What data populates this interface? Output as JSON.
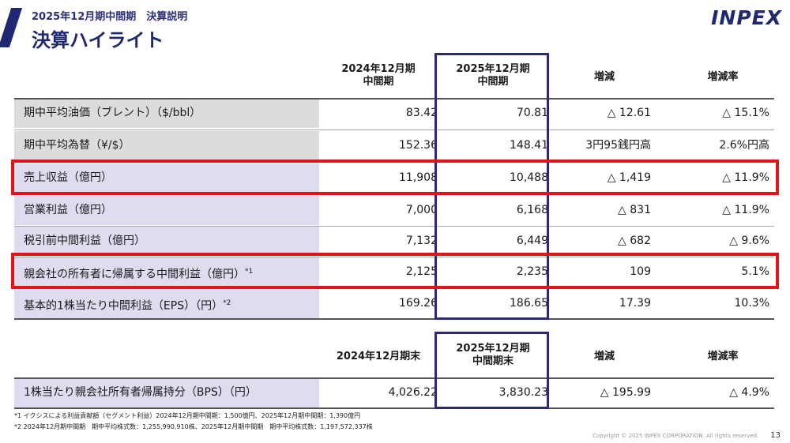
{
  "header": {
    "subtitle": "2025年12月期中間期　決算説明",
    "title": "決算ハイライト",
    "logo": "INPEX"
  },
  "table1": {
    "col1_line1": "2024年12月期",
    "col1_line2": "中間期",
    "col2_line1": "2025年12月期",
    "col2_line2": "中間期",
    "col3": "増減",
    "col4": "増減率",
    "rows": [
      {
        "label": "期中平均油価（ブレント）（$/bbl）",
        "sup": "",
        "v1": "83.42",
        "v2": "70.81",
        "v3": "△ 12.61",
        "v4": "△ 15.1%"
      },
      {
        "label": "期中平均為替（¥/$）",
        "sup": "",
        "v1": "152.36",
        "v2": "148.41",
        "v3": "3円95銭円高",
        "v4": "2.6%円高"
      },
      {
        "label": "売上収益（億円）",
        "sup": "",
        "v1": "11,908",
        "v2": "10,488",
        "v3": "△ 1,419",
        "v4": "△ 11.9%"
      },
      {
        "label": "営業利益（億円）",
        "sup": "",
        "v1": "7,000",
        "v2": "6,168",
        "v3": "△ 831",
        "v4": "△ 11.9%"
      },
      {
        "label": "税引前中間利益（億円）",
        "sup": "",
        "v1": "7,132",
        "v2": "6,449",
        "v3": "△ 682",
        "v4": "△ 9.6%"
      },
      {
        "label": "親会社の所有者に帰属する中間利益（億円）",
        "sup": "*1",
        "v1": "2,125",
        "v2": "2,235",
        "v3": "109",
        "v4": "5.1%"
      },
      {
        "label": "基本的1株当たり中間利益（EPS）（円）",
        "sup": "*2",
        "v1": "169.26",
        "v2": "186.65",
        "v3": "17.39",
        "v4": "10.3%"
      }
    ]
  },
  "table2": {
    "col1": "2024年12月期末",
    "col2_line1": "2025年12月期",
    "col2_line2": "中間期末",
    "col3": "増減",
    "col4": "増減率",
    "row": {
      "label": "1株当たり親会社所有者帰属持分（BPS）（円）",
      "v1": "4,026.22",
      "v2": "3,830.23",
      "v3": "△ 195.99",
      "v4": "△ 4.9%"
    }
  },
  "footnotes": {
    "fn1": "*1 イクシスによる利益貢献額（セグメント利益）2024年12月期中間期：1,500億円、2025年12月期中間期：1,390億円",
    "fn2": "*2 2024年12月期中間期　期中平均株式数：1,255,990,910株、2025年12月期中間期　期中平均株式数：1,197,572,337株"
  },
  "copyright": "Copyright © 2025 INPEX CORPORATION. All rights reserved.",
  "page_number": "13",
  "colors": {
    "navy": "#1f2870",
    "highlight_red": "#e0151b",
    "row_gray": "#dcdcdc",
    "row_purple": "#dfdcf0"
  }
}
